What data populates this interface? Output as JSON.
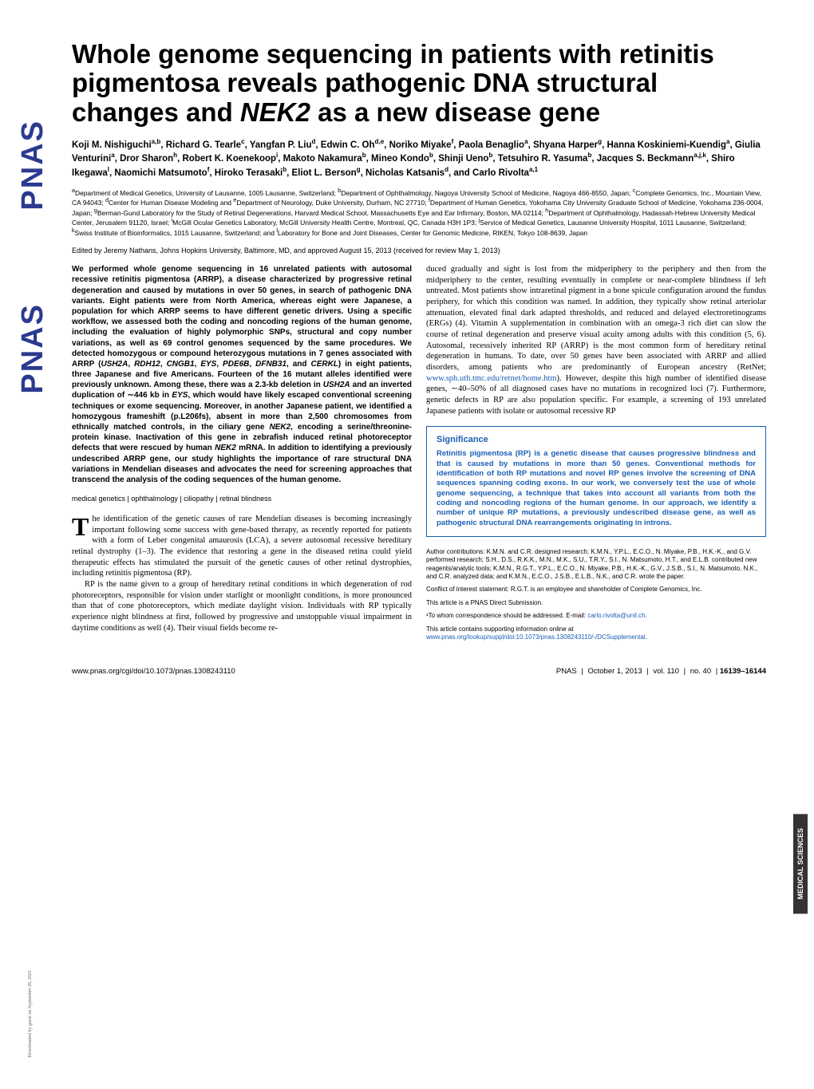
{
  "sideLogo": "PNAS",
  "sideTab": "MEDICAL SCIENCES",
  "downloadNote": "Downloaded by guest on September 26, 2021",
  "title": {
    "text": "Whole genome sequencing in patients with retinitis pigmentosa reveals pathogenic DNA structural changes and NEK2 as a new disease gene",
    "fontsize": 33,
    "color": "#000000"
  },
  "authors": {
    "html": "Koji M. Nishiguchi<sup>a,b</sup>, Richard G. Tearle<sup>c</sup>, Yangfan P. Liu<sup>d</sup>, Edwin C. Oh<sup>d,e</sup>, Noriko Miyake<sup>f</sup>, Paola Benaglio<sup>a</sup>, Shyana Harper<sup>g</sup>, Hanna Koskiniemi-Kuendig<sup>a</sup>, Giulia Venturini<sup>a</sup>, Dror Sharon<sup>h</sup>, Robert K. Koenekoop<sup>i</sup>, Makoto Nakamura<sup>b</sup>, Mineo Kondo<sup>b</sup>, Shinji Ueno<sup>b</sup>, Tetsuhiro R. Yasuma<sup>b</sup>, Jacques S. Beckmann<sup>a,j,k</sup>, Shiro Ikegawa<sup>l</sup>, Naomichi Matsumoto<sup>f</sup>, Hiroko Terasaki<sup>b</sup>, Eliot L. Berson<sup>g</sup>, Nicholas Katsanis<sup>d</sup>, and Carlo Rivolta<sup>a,1</sup>",
    "fontsize": 11.5
  },
  "affiliations": {
    "html": "<sup>a</sup>Department of Medical Genetics, University of Lausanne, 1005 Lausanne, Switzerland; <sup>b</sup>Department of Ophthalmology, Nagoya University School of Medicine, Nagoya 466-8550, Japan; <sup>c</sup>Complete Genomics, Inc., Mountain View, CA 94043; <sup>d</sup>Center for Human Disease Modeling and <sup>e</sup>Department of Neurology, Duke University, Durham, NC 27710; <sup>f</sup>Department of Human Genetics, Yokohama City University Graduate School of Medicine, Yokohama 236-0004, Japan; <sup>g</sup>Berman-Gund Laboratory for the Study of Retinal Degenerations, Harvard Medical School, Massachusetts Eye and Ear Infirmary, Boston, MA 02114; <sup>h</sup>Department of Ophthalmology, Hadassah-Hebrew University Medical Center, Jerusalem 91120, Israel; <sup>i</sup>McGill Ocular Genetics Laboratory, McGill University Health Centre, Montreal, QC, Canada H3H 1P3; <sup>j</sup>Service of Medical Genetics, Lausanne University Hospital, 1011 Lausanne, Switzerland; <sup>k</sup>Swiss Institute of Bioinformatics, 1015 Lausanne, Switzerland; and <sup>l</sup>Laboratory for Bone and Joint Diseases, Center for Genomic Medicine, RIKEN, Tokyo 108-8639, Japan",
    "fontsize": 8.5
  },
  "editorLine": {
    "text": "Edited by Jeremy Nathans, Johns Hopkins University, Baltimore, MD, and approved August 15, 2013 (received for review May 1, 2013)",
    "fontsize": 9
  },
  "abstract": {
    "html": "We performed whole genome sequencing in 16 unrelated patients with autosomal recessive retinitis pigmentosa (ARRP), a disease characterized by progressive retinal degeneration and caused by mutations in over 50 genes, in search of pathogenic DNA variants. Eight patients were from North America, whereas eight were Japanese, a population for which ARRP seems to have different genetic drivers. Using a specific workflow, we assessed both the coding and noncoding regions of the human genome, including the evaluation of highly polymorphic SNPs, structural and copy number variations, as well as 69 control genomes sequenced by the same procedures. We detected homozygous or compound heterozygous mutations in 7 genes associated with ARRP (<span class='italic'>USH2A</span>, <span class='italic'>RDH12</span>, <span class='italic'>CNGB1</span>, <span class='italic'>EYS</span>, <span class='italic'>PDE6B</span>, <span class='italic'>DFNB31</span>, and <span class='italic'>CERKL</span>) in eight patients, three Japanese and five Americans. Fourteen of the 16 mutant alleles identified were previously unknown. Among these, there was a 2.3-kb deletion in <span class='italic'>USH2A</span> and an inverted duplication of ∼446 kb in <span class='italic'>EYS</span>, which would have likely escaped conventional screening techniques or exome sequencing. Moreover, in another Japanese patient, we identified a homozygous frameshift (p.L206fs), absent in more than 2,500 chromosomes from ethnically matched controls, in the ciliary gene <span class='italic'>NEK2</span>, encoding a serine/threonine-protein kinase. Inactivation of this gene in zebrafish induced retinal photoreceptor defects that were rescued by human <span class='italic'>NEK2</span> mRNA. In addition to identifying a previously undescribed ARRP gene, our study highlights the importance of rare structural DNA variations in Mendelian diseases and advocates the need for screening approaches that transcend the analysis of the coding sequences of the human genome.",
    "fontsize": 10
  },
  "keywords": {
    "text": "medical genetics | ophthalmology | ciliopathy | retinal blindness",
    "fontsize": 9
  },
  "bodyLeft": {
    "dropcapLetter": "T",
    "p1": "he identification of the genetic causes of rare Mendelian diseases is becoming increasingly important following some success with gene-based therapy, as recently reported for patients with a form of Leber congenital amaurosis (LCA), a severe autosomal recessive hereditary retinal dystrophy (1–3). The evidence that restoring a gene in the diseased retina could yield therapeutic effects has stimulated the pursuit of the genetic causes of other retinal dystrophies, including retinitis pigmentosa (RP).",
    "p2": "RP is the name given to a group of hereditary retinal conditions in which degeneration of rod photoreceptors, responsible for vision under starlight or moonlight conditions, is more pronounced than that of cone photoreceptors, which mediate daylight vision. Individuals with RP typically experience night blindness at first, followed by progressive and unstoppable visual impairment in daytime conditions as well (4). Their visual fields become re-",
    "fontsize": 10.5
  },
  "bodyRight": {
    "p1": "duced gradually and sight is lost from the midperiphery to the periphery and then from the midperiphery to the center, resulting eventually in complete or near-complete blindness if left untreated. Most patients show intraretinal pigment in a bone spicule configuration around the fundus periphery, for which this condition was named. In addition, they typically show retinal arteriolar attenuation, elevated final dark adapted thresholds, and reduced and delayed electroretinograms (ERGs) (4). Vitamin A supplementation in combination with an omega-3 rich diet can slow the course of retinal degeneration and preserve visual acuity among adults with this condition (5, 6). Autosomal, recessively inherited RP (ARRP) is the most common form of hereditary retinal degeneration in humans. To date, over 50 genes have been associated with ARRP and allied disorders, among patients who are predominantly of European ancestry (RetNet; ",
    "link1_text": "www.sph.uth.tmc.edu/retnet/home.htm",
    "p1b": "). However, despite this high number of identified disease genes, ∼40–50% of all diagnosed cases have no mutations in recognized loci (7). Furthermore, genetic defects in RP are also population specific. For example, a screening of 193 unrelated Japanese patients with isolate or autosomal recessive RP",
    "fontsize": 10.5
  },
  "significance": {
    "title": "Significance",
    "body": "Retinitis pigmentosa (RP) is a genetic disease that causes progressive blindness and that is caused by mutations in more than 50 genes. Conventional methods for identification of both RP mutations and novel RP genes involve the screening of DNA sequences spanning coding exons. In our work, we conversely test the use of whole genome sequencing, a technique that takes into account all variants from both the coding and noncoding regions of the human genome. In our approach, we identify a number of unique RP mutations, a previously undescribed disease gene, as well as pathogenic structural DNA rearrangements originating in introns.",
    "title_fontsize": 11,
    "body_fontsize": 9.5,
    "color": "#1a5fb4"
  },
  "footnotes": {
    "contrib": "Author contributions: K.M.N. and C.R. designed research; K.M.N., Y.P.L., E.C.O., N. Miyake, P.B., H.K.-K., and G.V. performed research; S.H., D.S., R.K.K., M.N., M.K., S.U., T.R.Y., S.I., N. Matsumoto, H.T., and E.L.B. contributed new reagents/analytic tools; K.M.N., R.G.T., Y.P.L., E.C.O., N. Miyake, P.B., H.K.-K., G.V., J.S.B., S.I., N. Matsumoto, N.K., and C.R. analyzed data; and K.M.N., E.C.O., J.S.B., E.L.B., N.K., and C.R. wrote the paper.",
    "conflict": "Conflict of interest statement: R.G.T. is an employee and shareholder of Complete Genomics, Inc.",
    "direct": "This article is a PNAS Direct Submission.",
    "corresp_prefix": "¹To whom correspondence should be addressed. E-mail: ",
    "corresp_email": "carlo.rivolta@unil.ch",
    "suppl_prefix": "This article contains supporting information online at ",
    "suppl_link": "www.pnas.org/lookup/suppl/doi:10.1073/pnas.1308243110/-/DCSupplemental",
    "fontsize": 8
  },
  "footer": {
    "doi": "www.pnas.org/cgi/doi/10.1073/pnas.1308243110",
    "journal": "PNAS",
    "date": "October 1, 2013",
    "vol": "vol. 110",
    "no": "no. 40",
    "pages": "16139–16144"
  }
}
